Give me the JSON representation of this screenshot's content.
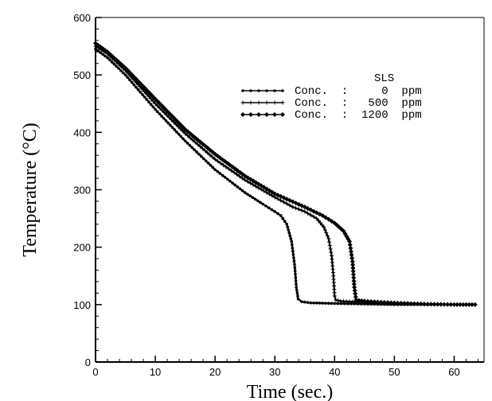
{
  "chart_data": {
    "type": "line",
    "title": "",
    "xlabel": "Time  (sec.)",
    "ylabel": "Temperature  (°C)",
    "xlim": [
      0,
      65
    ],
    "ylim": [
      0,
      600
    ],
    "xticks": [
      0,
      10,
      20,
      30,
      40,
      50,
      60
    ],
    "yticks": [
      0,
      100,
      200,
      300,
      400,
      500,
      600
    ],
    "grid": false,
    "legend": {
      "title": "SLS",
      "position": "top-right",
      "entries": [
        "Conc.  :     0  ppm",
        "Conc.  :   500  ppm",
        "Conc.  :  1200  ppm"
      ]
    },
    "series": [
      {
        "name": "Conc. : 0 ppm",
        "marker": "dot",
        "points": [
          [
            0,
            545
          ],
          [
            2,
            530
          ],
          [
            5,
            500
          ],
          [
            10,
            440
          ],
          [
            15,
            385
          ],
          [
            20,
            335
          ],
          [
            25,
            295
          ],
          [
            28,
            275
          ],
          [
            30,
            262
          ],
          [
            31,
            255
          ],
          [
            32,
            240
          ],
          [
            32.8,
            210
          ],
          [
            33.3,
            170
          ],
          [
            33.6,
            130
          ],
          [
            33.9,
            110
          ],
          [
            34.5,
            105
          ],
          [
            36,
            103
          ],
          [
            40,
            102
          ],
          [
            45,
            101
          ],
          [
            50,
            100
          ],
          [
            55,
            100
          ],
          [
            60,
            100
          ],
          [
            63.5,
            100
          ]
        ]
      },
      {
        "name": "Conc. : 500 ppm",
        "marker": "plus",
        "points": [
          [
            0,
            550
          ],
          [
            2,
            537
          ],
          [
            5,
            508
          ],
          [
            10,
            450
          ],
          [
            15,
            398
          ],
          [
            20,
            353
          ],
          [
            25,
            317
          ],
          [
            30,
            287
          ],
          [
            33,
            270
          ],
          [
            35,
            262
          ],
          [
            37,
            250
          ],
          [
            38.2,
            235
          ],
          [
            39,
            215
          ],
          [
            39.5,
            185
          ],
          [
            39.8,
            150
          ],
          [
            40,
            115
          ],
          [
            40.2,
            108
          ],
          [
            41,
            106
          ],
          [
            45,
            104
          ],
          [
            50,
            102
          ],
          [
            55,
            101
          ],
          [
            60,
            100
          ],
          [
            63.5,
            100
          ]
        ]
      },
      {
        "name": "Conc. : 1200 ppm",
        "marker": "diamond",
        "points": [
          [
            0,
            555
          ],
          [
            2,
            540
          ],
          [
            5,
            512
          ],
          [
            10,
            458
          ],
          [
            15,
            405
          ],
          [
            20,
            362
          ],
          [
            25,
            324
          ],
          [
            30,
            293
          ],
          [
            35,
            270
          ],
          [
            38,
            255
          ],
          [
            40,
            242
          ],
          [
            41.5,
            228
          ],
          [
            42.5,
            210
          ],
          [
            43,
            175
          ],
          [
            43.3,
            130
          ],
          [
            43.6,
            108
          ],
          [
            45,
            106
          ],
          [
            50,
            103
          ],
          [
            55,
            101
          ],
          [
            60,
            100
          ],
          [
            63.5,
            100
          ]
        ]
      }
    ]
  }
}
